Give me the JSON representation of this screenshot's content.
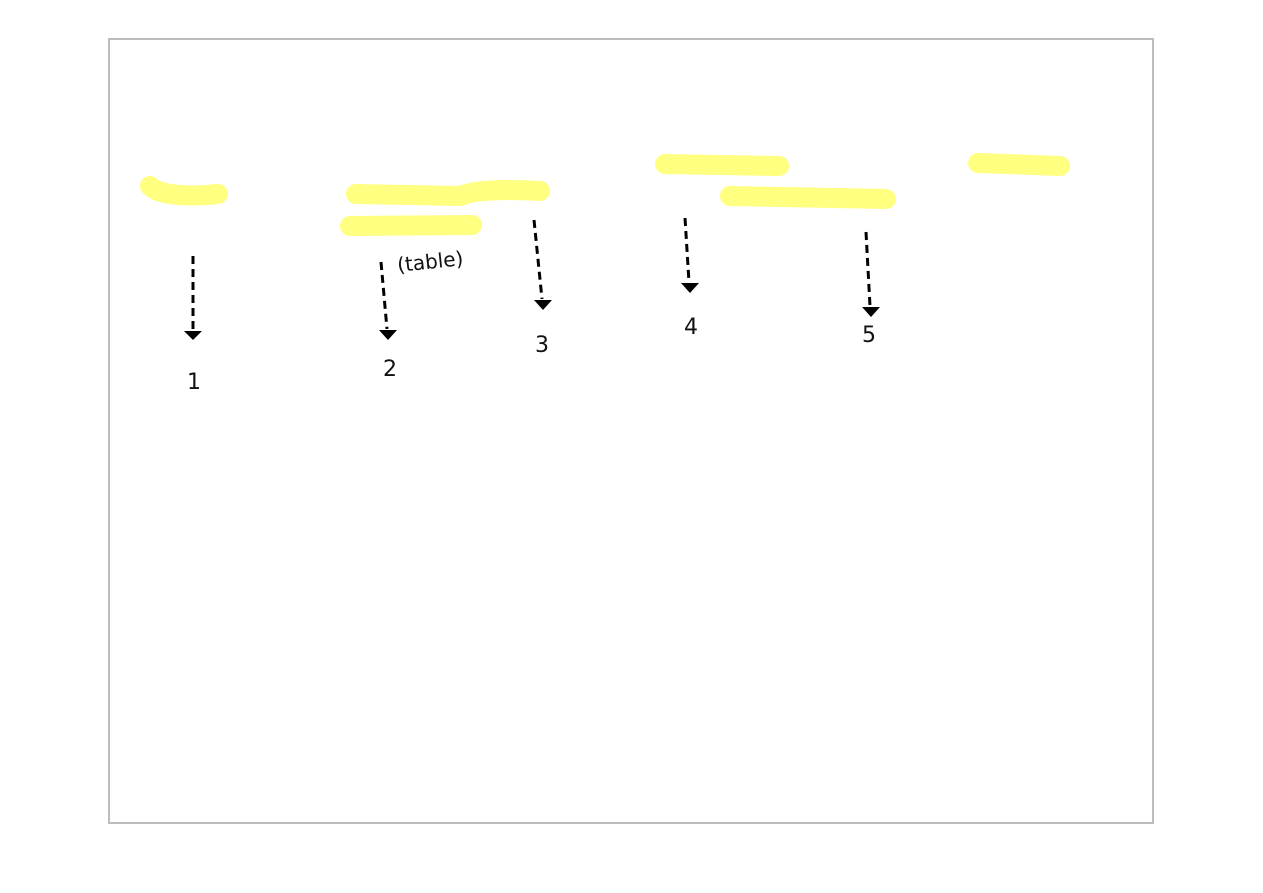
{
  "diagram": {
    "highlight_color": "#ffff80",
    "arrow_color": "#000000",
    "border_color": "#bdbdbd",
    "numbers": [
      "1",
      "2",
      "3",
      "4",
      "5"
    ],
    "annotation": "(table)"
  }
}
